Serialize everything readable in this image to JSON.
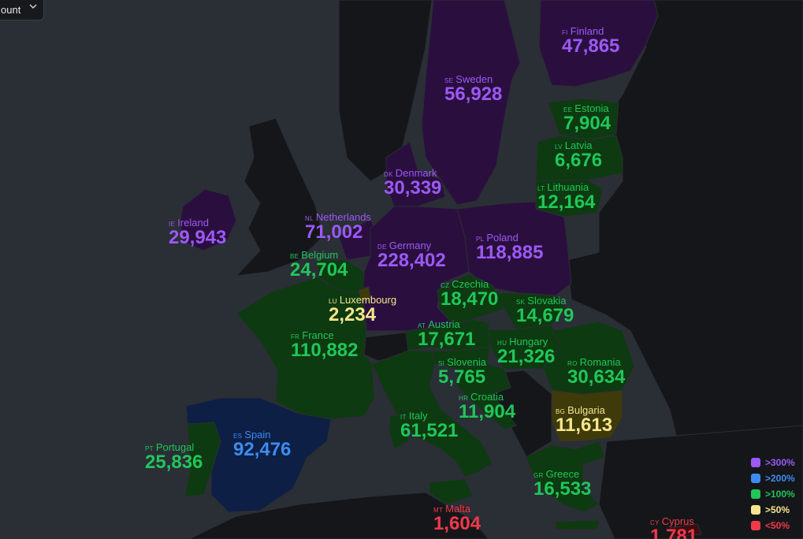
{
  "dropdown": {
    "label": "ount"
  },
  "colors": {
    "sea": "#2a2e35",
    "land_neutral": "#151619",
    "fill_300": "#2a0f3e",
    "fill_200": "#0d1f45",
    "fill_100": "#0d3a10",
    "fill_50": "#3e3a0a",
    "fill_lt50": "#3a0d12",
    "text_300": "#9b59f6",
    "text_200": "#3d8bf2",
    "text_100": "#20c65a",
    "text_50": "#f6e58d",
    "text_lt50": "#f2394a"
  },
  "countries": {
    "fi": {
      "code": "FI",
      "name": "Finland",
      "value": "47,865",
      "category": ">300%"
    },
    "se": {
      "code": "SE",
      "name": "Sweden",
      "value": "56,928",
      "category": ">300%"
    },
    "ee": {
      "code": "EE",
      "name": "Estonia",
      "value": "7,904",
      "category": ">100%"
    },
    "lv": {
      "code": "LV",
      "name": "Latvia",
      "value": "6,676",
      "category": ">100%"
    },
    "lt": {
      "code": "LT",
      "name": "Lithuania",
      "value": "12,164",
      "category": ">100%"
    },
    "dk": {
      "code": "DK",
      "name": "Denmark",
      "value": "30,339",
      "category": ">300%"
    },
    "ie": {
      "code": "IE",
      "name": "Ireland",
      "value": "29,943",
      "category": ">300%"
    },
    "nl": {
      "code": "NL",
      "name": "Netherlands",
      "value": "71,002",
      "category": ">300%"
    },
    "de": {
      "code": "DE",
      "name": "Germany",
      "value": "228,402",
      "category": ">300%"
    },
    "pl": {
      "code": "PL",
      "name": "Poland",
      "value": "118,885",
      "category": ">300%"
    },
    "be": {
      "code": "BE",
      "name": "Belgium",
      "value": "24,704",
      "category": ">100%"
    },
    "lu": {
      "code": "LU",
      "name": "Luxembourg",
      "value": "2,234",
      "category": ">50%"
    },
    "cz": {
      "code": "CZ",
      "name": "Czechia",
      "value": "18,470",
      "category": ">100%"
    },
    "sk": {
      "code": "SK",
      "name": "Slovakia",
      "value": "14,679",
      "category": ">100%"
    },
    "fr": {
      "code": "FR",
      "name": "France",
      "value": "110,882",
      "category": ">100%"
    },
    "at": {
      "code": "AT",
      "name": "Austria",
      "value": "17,671",
      "category": ">100%"
    },
    "hu": {
      "code": "HU",
      "name": "Hungary",
      "value": "21,326",
      "category": ">100%"
    },
    "ro": {
      "code": "RO",
      "name": "Romania",
      "value": "30,634",
      "category": ">100%"
    },
    "si": {
      "code": "SI",
      "name": "Slovenia",
      "value": "5,765",
      "category": ">100%"
    },
    "hr": {
      "code": "HR",
      "name": "Croatia",
      "value": "11,904",
      "category": ">100%"
    },
    "bg": {
      "code": "BG",
      "name": "Bulgaria",
      "value": "11,613",
      "category": ">50%"
    },
    "es": {
      "code": "ES",
      "name": "Spain",
      "value": "92,476",
      "category": ">200%"
    },
    "pt": {
      "code": "PT",
      "name": "Portugal",
      "value": "25,836",
      "category": ">100%"
    },
    "it": {
      "code": "IT",
      "name": "Italy",
      "value": "61,521",
      "category": ">100%"
    },
    "gr": {
      "code": "GR",
      "name": "Greece",
      "value": "16,533",
      "category": ">100%"
    },
    "mt": {
      "code": "MT",
      "name": "Malta",
      "value": "1,604",
      "category": "<50%"
    },
    "cy": {
      "code": "CY",
      "name": "Cyprus",
      "value": "1,781",
      "category": "<50%"
    }
  },
  "legend": [
    {
      "label": ">300%",
      "color": "#9b59f6"
    },
    {
      "label": ">200%",
      "color": "#3d8bf2"
    },
    {
      "label": ">100%",
      "color": "#20c65a"
    },
    {
      "label": ">50%",
      "color": "#f6e58d"
    },
    {
      "label": "<50%",
      "color": "#f2394a"
    }
  ]
}
